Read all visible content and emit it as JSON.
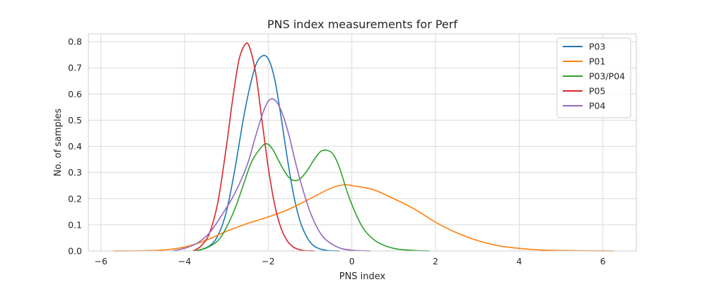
{
  "chart_data": {
    "type": "line",
    "title": "PNS index measurements for Perf",
    "xlabel": "PNS index",
    "ylabel": "No. of samples",
    "xlim": [
      -6.3,
      6.8
    ],
    "ylim": [
      0.0,
      0.83
    ],
    "xticks": [
      -6,
      -4,
      -2,
      0,
      2,
      4,
      6
    ],
    "xtick_labels": [
      "−6",
      "−4",
      "−2",
      "0",
      "2",
      "4",
      "6"
    ],
    "yticks": [
      0.0,
      0.1,
      0.2,
      0.3,
      0.4,
      0.5,
      0.6,
      0.7,
      0.8
    ],
    "ytick_labels": [
      "0.0",
      "0.1",
      "0.2",
      "0.3",
      "0.4",
      "0.5",
      "0.6",
      "0.7",
      "0.8"
    ],
    "grid": true,
    "legend_position": "top-right",
    "series": [
      {
        "name": "P03",
        "color": "#1f77b4",
        "x": [
          -3.7,
          -3.4,
          -3.2,
          -3.0,
          -2.8,
          -2.6,
          -2.45,
          -2.3,
          -2.15,
          -2.0,
          -1.85,
          -1.7,
          -1.55,
          -1.4,
          -1.25,
          -1.1,
          -0.95,
          -0.8,
          -0.6,
          -0.3
        ],
        "y": [
          0.0,
          0.02,
          0.06,
          0.15,
          0.31,
          0.5,
          0.62,
          0.71,
          0.745,
          0.735,
          0.66,
          0.52,
          0.36,
          0.22,
          0.12,
          0.06,
          0.025,
          0.01,
          0.002,
          0.0
        ]
      },
      {
        "name": "P01",
        "color": "#ff7f0e",
        "x": [
          -5.7,
          -5.0,
          -4.5,
          -4.0,
          -3.5,
          -3.0,
          -2.5,
          -2.0,
          -1.5,
          -1.0,
          -0.5,
          -0.2,
          0.0,
          0.5,
          1.0,
          1.5,
          2.0,
          2.5,
          3.0,
          3.5,
          4.0,
          4.5,
          5.0,
          5.5,
          6.25
        ],
        "y": [
          0.0,
          0.001,
          0.004,
          0.015,
          0.04,
          0.075,
          0.105,
          0.13,
          0.16,
          0.2,
          0.24,
          0.253,
          0.25,
          0.235,
          0.2,
          0.16,
          0.11,
          0.07,
          0.04,
          0.02,
          0.01,
          0.004,
          0.002,
          0.001,
          0.0
        ]
      },
      {
        "name": "P03/P04",
        "color": "#2ca02c",
        "x": [
          -3.8,
          -3.5,
          -3.2,
          -3.0,
          -2.8,
          -2.6,
          -2.4,
          -2.2,
          -2.05,
          -1.9,
          -1.7,
          -1.5,
          -1.3,
          -1.1,
          -0.9,
          -0.75,
          -0.6,
          -0.45,
          -0.3,
          -0.1,
          0.1,
          0.3,
          0.6,
          1.0,
          1.4,
          1.85
        ],
        "y": [
          0.0,
          0.01,
          0.04,
          0.09,
          0.16,
          0.25,
          0.34,
          0.39,
          0.41,
          0.39,
          0.33,
          0.28,
          0.27,
          0.3,
          0.35,
          0.38,
          0.385,
          0.37,
          0.32,
          0.22,
          0.14,
          0.08,
          0.035,
          0.01,
          0.003,
          0.0
        ]
      },
      {
        "name": "P05",
        "color": "#d62728",
        "x": [
          -3.8,
          -3.6,
          -3.4,
          -3.2,
          -3.0,
          -2.85,
          -2.7,
          -2.55,
          -2.45,
          -2.3,
          -2.15,
          -2.0,
          -1.85,
          -1.7,
          -1.55,
          -1.4,
          -1.25,
          -1.1,
          -0.9
        ],
        "y": [
          0.0,
          0.02,
          0.07,
          0.19,
          0.4,
          0.58,
          0.73,
          0.79,
          0.78,
          0.68,
          0.5,
          0.32,
          0.18,
          0.09,
          0.04,
          0.015,
          0.005,
          0.001,
          0.0
        ]
      },
      {
        "name": "P04",
        "color": "#9467bd",
        "x": [
          -4.3,
          -4.0,
          -3.7,
          -3.4,
          -3.1,
          -2.8,
          -2.5,
          -2.3,
          -2.1,
          -1.95,
          -1.8,
          -1.65,
          -1.5,
          -1.35,
          -1.2,
          -1.0,
          -0.8,
          -0.6,
          -0.3,
          0.0,
          0.45
        ],
        "y": [
          0.0,
          0.01,
          0.03,
          0.07,
          0.14,
          0.22,
          0.33,
          0.44,
          0.54,
          0.58,
          0.57,
          0.52,
          0.44,
          0.34,
          0.25,
          0.15,
          0.08,
          0.04,
          0.012,
          0.003,
          0.0
        ]
      }
    ]
  }
}
